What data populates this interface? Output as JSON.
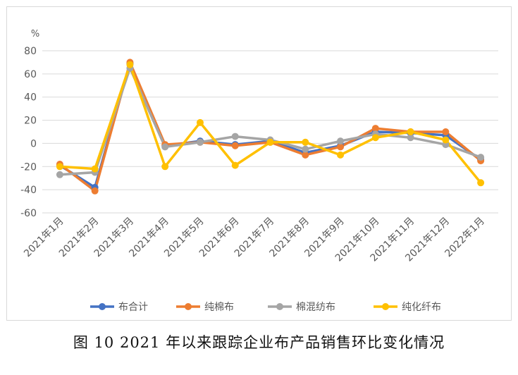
{
  "caption": "图 10   2021 年以来跟踪企业布产品销售环比变化情况",
  "chart_data": {
    "type": "line",
    "ylabel": "%",
    "ylim": [
      -60,
      80
    ],
    "yticks": [
      80,
      60,
      40,
      20,
      0,
      -20,
      -40,
      -60
    ],
    "grid": true,
    "legend_position": "bottom",
    "categories": [
      "2021年1月",
      "2021年2月",
      "2021年3月",
      "2021年4月",
      "2021年5月",
      "2021年6月",
      "2021年7月",
      "2021年8月",
      "2021年9月",
      "2021年10月",
      "2021年11月",
      "2021年12月",
      "2022年1月"
    ],
    "series": [
      {
        "name": "布合计",
        "color": "#4472c4",
        "values": [
          -19,
          -38,
          69,
          -2,
          2,
          -1,
          2,
          -8,
          -2,
          10,
          9,
          7,
          -14
        ]
      },
      {
        "name": "纯棉布",
        "color": "#ed7d31",
        "values": [
          -18,
          -41,
          70,
          -1,
          1,
          -2,
          1,
          -10,
          -3,
          13,
          10,
          10,
          -15
        ]
      },
      {
        "name": "棉混纺布",
        "color": "#a5a5a5",
        "values": [
          -27,
          -25,
          65,
          -3,
          1,
          6,
          3,
          -5,
          2,
          8,
          5,
          -1,
          -12
        ]
      },
      {
        "name": "纯化纤布",
        "color": "#ffc000",
        "values": [
          -20,
          -22,
          68,
          -20,
          18,
          -19,
          1,
          1,
          -10,
          5,
          10,
          3,
          -34
        ]
      }
    ]
  }
}
